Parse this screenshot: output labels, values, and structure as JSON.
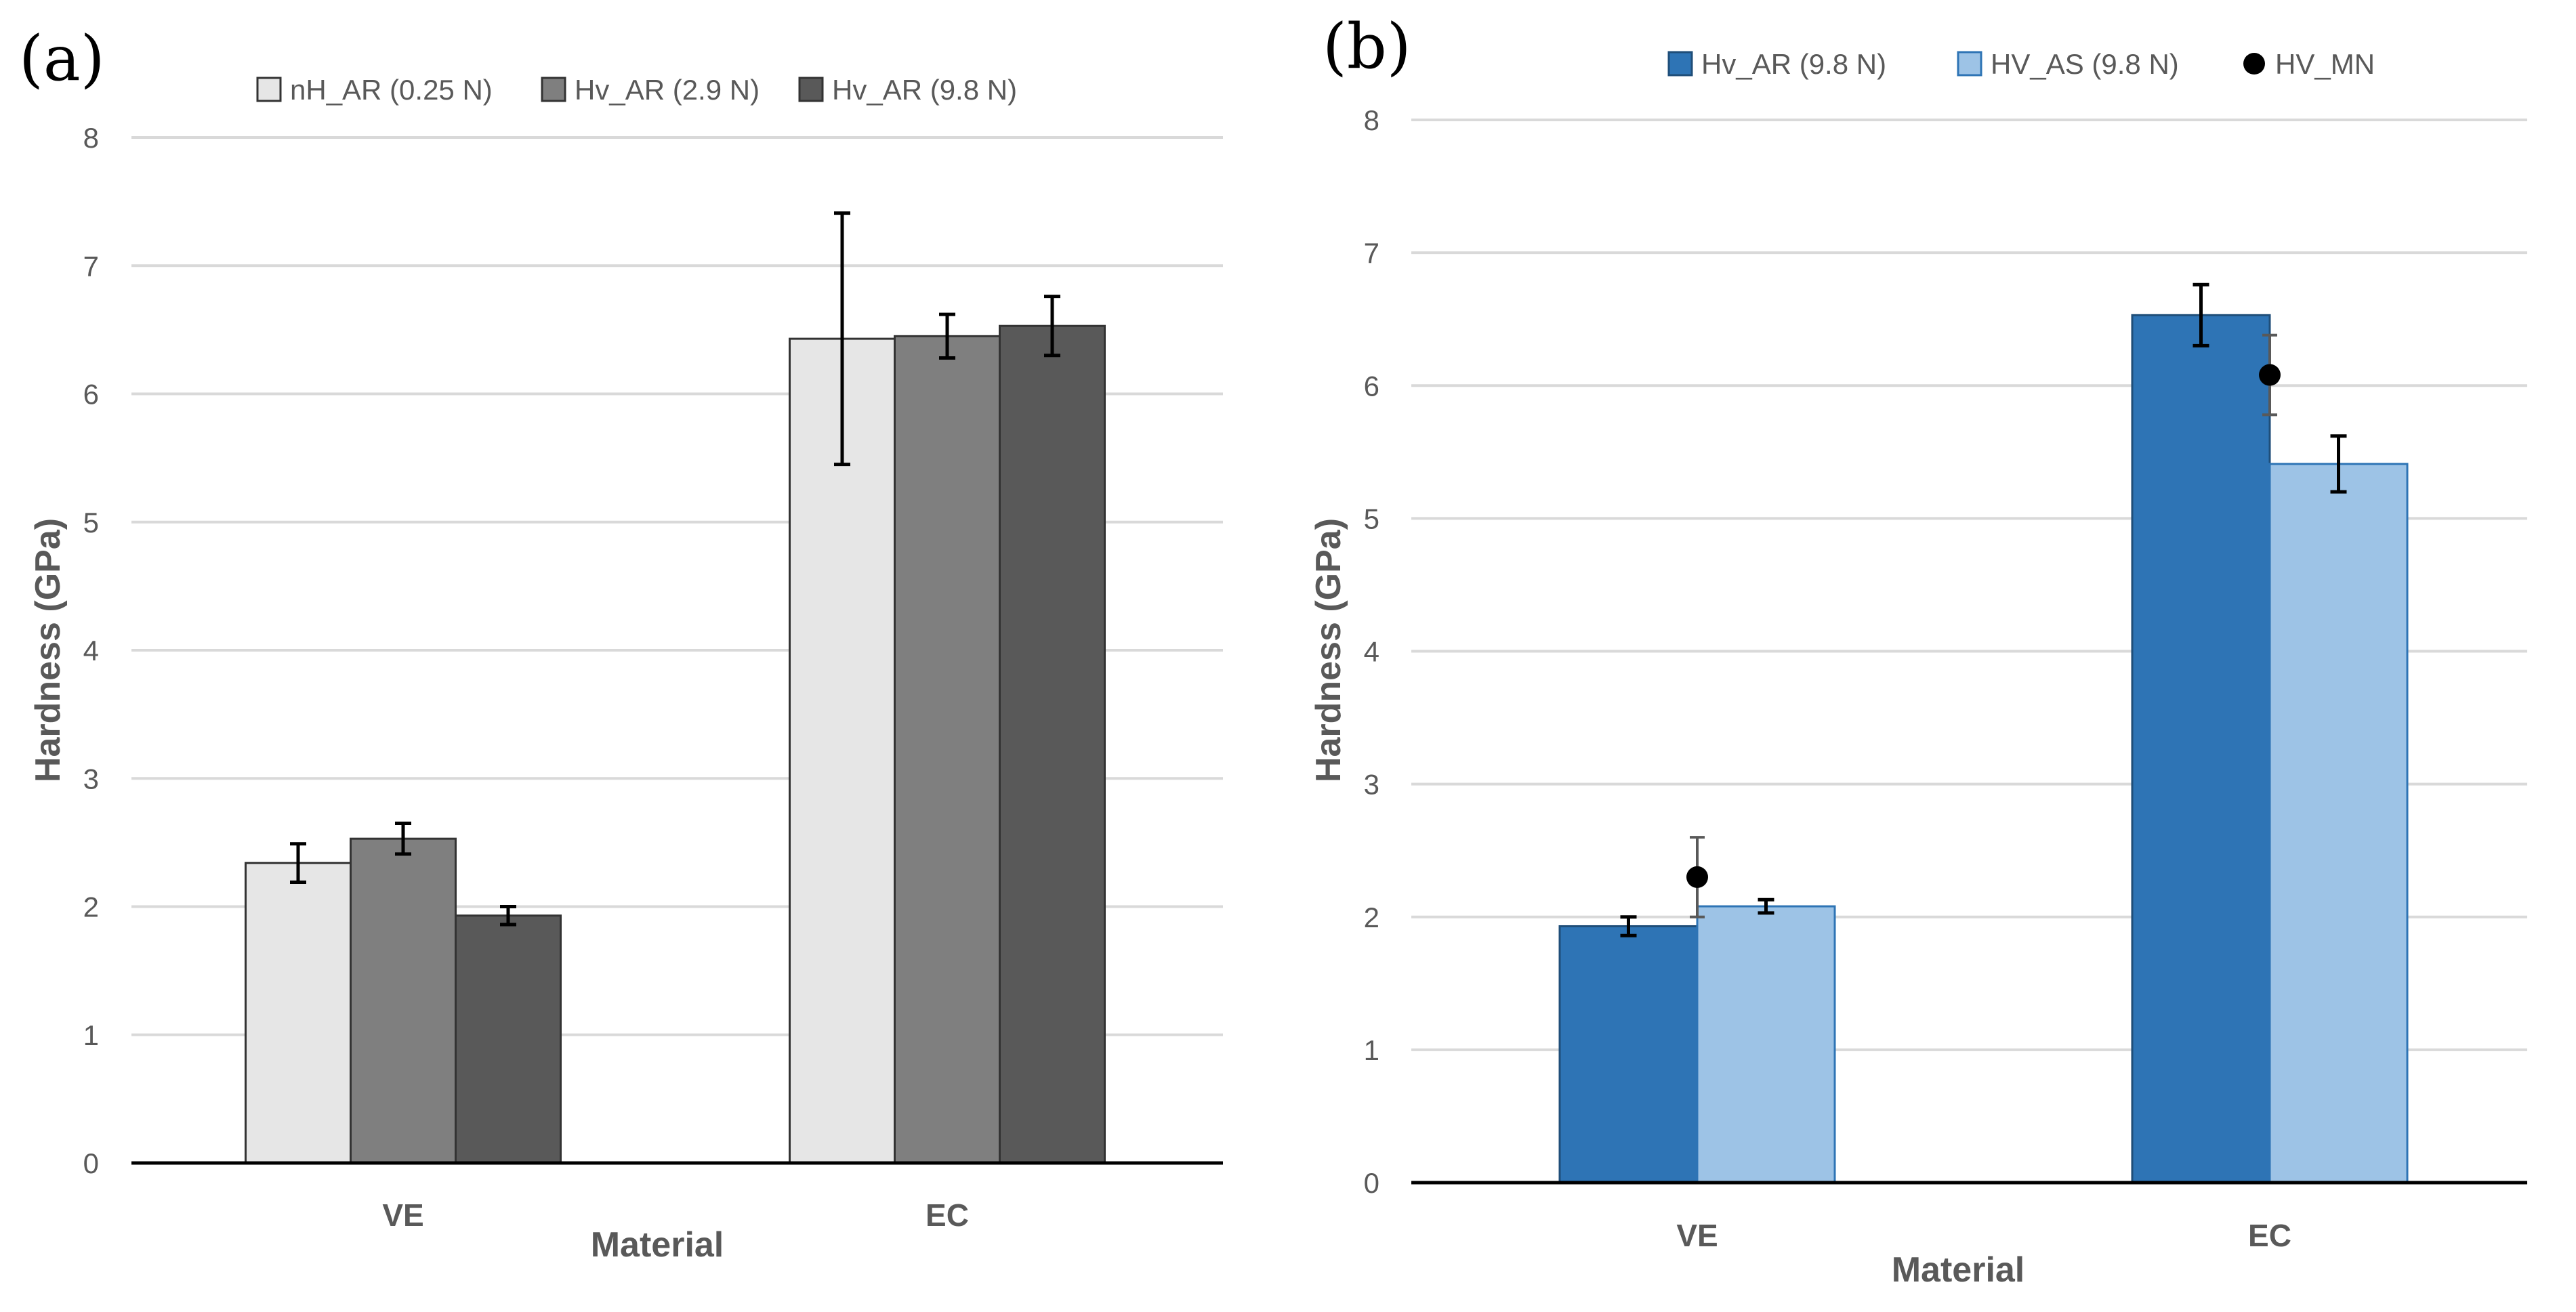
{
  "chart_data": [
    {
      "panel_label": "(a)",
      "type": "bar",
      "categories": [
        "VE",
        "EC"
      ],
      "xlabel": "Material",
      "ylabel": "Hardness (GPa)",
      "ylim": [
        0,
        8
      ],
      "yticks": [
        "0",
        "1",
        "2",
        "3",
        "4",
        "5",
        "6",
        "7",
        "8"
      ],
      "grid": true,
      "legend_position": "top",
      "series": [
        {
          "name": "nH_AR (0.25 N)",
          "color": "#e6e6e6",
          "stroke": "#333333",
          "values": [
            2.34,
            6.43
          ],
          "errors": [
            0.15,
            0.98
          ]
        },
        {
          "name": "Hv_AR (2.9 N)",
          "color": "#7f7f7f",
          "stroke": "#333333",
          "values": [
            2.53,
            6.45
          ],
          "errors": [
            0.12,
            0.17
          ]
        },
        {
          "name": "Hv_AR (9.8 N)",
          "color": "#595959",
          "stroke": "#333333",
          "values": [
            1.93,
            6.53
          ],
          "errors": [
            0.07,
            0.23
          ]
        }
      ]
    },
    {
      "panel_label": "(b)",
      "type": "bar",
      "categories": [
        "VE",
        "EC"
      ],
      "xlabel": "Material",
      "ylabel": "Hardness (GPa)",
      "ylim": [
        0,
        8
      ],
      "yticks": [
        "0",
        "1",
        "2",
        "3",
        "4",
        "5",
        "6",
        "7",
        "8"
      ],
      "grid": true,
      "legend_position": "top",
      "series": [
        {
          "name": "Hv_AR (9.8 N)",
          "color": "#2e74b5",
          "stroke": "#1f4e79",
          "values": [
            1.93,
            6.53
          ],
          "errors": [
            0.07,
            0.23
          ]
        },
        {
          "name": "HV_AS (9.8 N)",
          "color": "#9dc3e6",
          "stroke": "#2e74b5",
          "values": [
            2.08,
            5.41
          ],
          "errors": [
            0.05,
            0.21
          ]
        }
      ],
      "points": {
        "name": "HV_MN",
        "color": "#000000",
        "values": [
          2.3,
          6.08
        ],
        "errors": [
          0.3,
          0.3
        ]
      }
    }
  ]
}
